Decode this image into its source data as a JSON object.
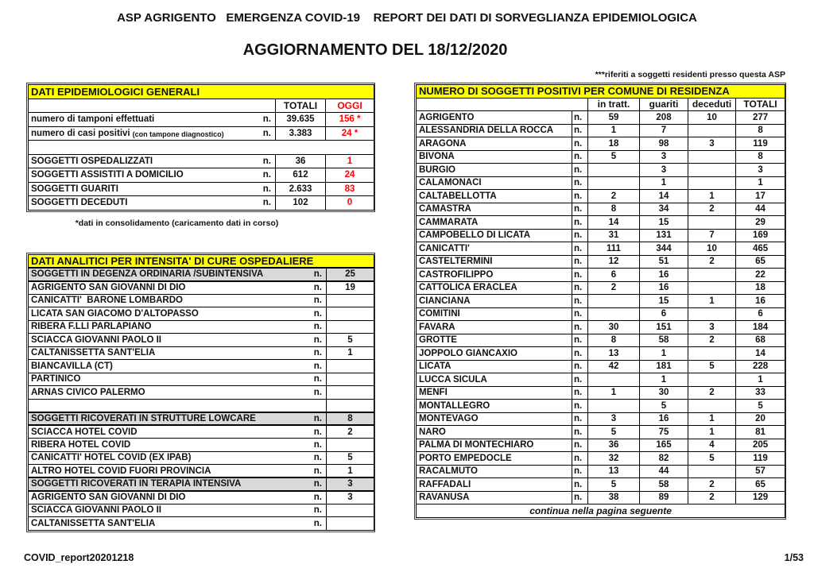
{
  "page": {
    "title": "ASP AGRIGENTO   EMERGENZA COVID-19    REPORT DEI DATI DI SORVEGLIANZA EPIDEMIOLOGICA",
    "subtitle": "AGGIORNAMENTO DEL 18/12/2020",
    "residents_note": "***riferiti a soggetti residenti presso questa ASP",
    "footer_left": "COVID_report20201218",
    "page_number": "1/53"
  },
  "colors": {
    "header_yellow": "#ffff00",
    "today_red": "#ff0000",
    "section_gray": "#d9d9d9"
  },
  "n_label": "n.",
  "general_table": {
    "title": "DATI EPIDEMIOLOGICI GENERALI",
    "columns": {
      "totali": "TOTALI",
      "oggi": "OGGI"
    },
    "rows": [
      {
        "label": "numero di tamponi effettuati",
        "small": "",
        "totali": "39.635",
        "oggi": "156 *"
      },
      {
        "label": "numero di casi positivi",
        "small": "(con tampone diagnostico)",
        "totali": "3.383",
        "oggi": "24 *"
      },
      {
        "spacer": true
      },
      {
        "label": "SOGGETTI OSPEDALIZZATI",
        "small": "",
        "totali": "36",
        "oggi": "1"
      },
      {
        "label": "SOGGETTI ASSISTITI A DOMICILIO",
        "small": "",
        "totali": "612",
        "oggi": "24"
      },
      {
        "label": "SOGGETTI GUARITI",
        "small": "",
        "totali": "2.633",
        "oggi": "83"
      },
      {
        "label": "SOGGETTI DECEDUTI",
        "small": "",
        "totali": "102",
        "oggi": "0"
      }
    ],
    "footnote": "*dati in consolidamento (caricamento dati in corso)"
  },
  "care_table": {
    "title": "DATI ANALITICI PER INTENSITA' DI CURE OSPEDALIERE",
    "rows": [
      {
        "label": "SOGGETTI IN DEGENZA ORDINARIA /SUBINTENSIVA",
        "value": "25",
        "section": true
      },
      {
        "label": "AGRIGENTO SAN GIOVANNI DI DIO",
        "value": "19"
      },
      {
        "label": "CANICATTI'  BARONE LOMBARDO",
        "value": ""
      },
      {
        "label": "LICATA SAN GIACOMO D'ALTOPASSO",
        "value": ""
      },
      {
        "label": "RIBERA F.LLI PARLAPIANO",
        "value": ""
      },
      {
        "label": "SCIACCA GIOVANNI PAOLO II",
        "value": "5"
      },
      {
        "label": "CALTANISSETTA SANT'ELIA",
        "value": "1"
      },
      {
        "label": "BIANCAVILLA (CT)",
        "value": ""
      },
      {
        "label": "PARTINICO",
        "value": ""
      },
      {
        "label": "ARNAS CIVICO PALERMO",
        "value": ""
      },
      {
        "label": "",
        "value": "",
        "empty": true
      },
      {
        "label": "SOGGETTI RICOVERATI IN STRUTTURE LOWCARE",
        "value": "8",
        "section": true
      },
      {
        "label": "SCIACCA HOTEL COVID",
        "value": "2"
      },
      {
        "label": "RIBERA HOTEL COVID",
        "value": ""
      },
      {
        "label": "CANICATTI' HOTEL COVID (EX IPAB)",
        "value": "5"
      },
      {
        "label": "ALTRO HOTEL COVID FUORI PROVINCIA",
        "value": "1"
      },
      {
        "label": "SOGGETTI RICOVERATI IN TERAPIA INTENSIVA",
        "value": "3",
        "section": true
      },
      {
        "label": "AGRIGENTO SAN GIOVANNI DI DIO",
        "value": "3"
      },
      {
        "label": "SCIACCA GIOVANNI PAOLO II",
        "value": ""
      },
      {
        "label": "CALTANISSETTA SANT'ELIA",
        "value": ""
      }
    ]
  },
  "comuni_table": {
    "title": "NUMERO DI SOGGETTI POSITIVI PER COMUNE DI RESIDENZA",
    "columns": [
      "in tratt.",
      "guariti",
      "deceduti",
      "TOTALI"
    ],
    "rows": [
      {
        "comune": "AGRIGENTO",
        "in_tratt": "59",
        "guariti": "208",
        "deceduti": "10",
        "totali": "277"
      },
      {
        "comune": "ALESSANDRIA DELLA ROCCA",
        "in_tratt": "1",
        "guariti": "7",
        "deceduti": "",
        "totali": "8"
      },
      {
        "comune": "ARAGONA",
        "in_tratt": "18",
        "guariti": "98",
        "deceduti": "3",
        "totali": "119"
      },
      {
        "comune": "BIVONA",
        "in_tratt": "5",
        "guariti": "3",
        "deceduti": "",
        "totali": "8"
      },
      {
        "comune": "BURGIO",
        "in_tratt": "",
        "guariti": "3",
        "deceduti": "",
        "totali": "3"
      },
      {
        "comune": "CALAMONACI",
        "in_tratt": "",
        "guariti": "1",
        "deceduti": "",
        "totali": "1"
      },
      {
        "comune": "CALTABELLOTTA",
        "in_tratt": "2",
        "guariti": "14",
        "deceduti": "1",
        "totali": "17"
      },
      {
        "comune": "CAMASTRA",
        "in_tratt": "8",
        "guariti": "34",
        "deceduti": "2",
        "totali": "44"
      },
      {
        "comune": "CAMMARATA",
        "in_tratt": "14",
        "guariti": "15",
        "deceduti": "",
        "totali": "29"
      },
      {
        "comune": "CAMPOBELLO DI LICATA",
        "in_tratt": "31",
        "guariti": "131",
        "deceduti": "7",
        "totali": "169"
      },
      {
        "comune": "CANICATTI'",
        "in_tratt": "111",
        "guariti": "344",
        "deceduti": "10",
        "totali": "465"
      },
      {
        "comune": "CASTELTERMINI",
        "in_tratt": "12",
        "guariti": "51",
        "deceduti": "2",
        "totali": "65"
      },
      {
        "comune": "CASTROFILIPPO",
        "in_tratt": "6",
        "guariti": "16",
        "deceduti": "",
        "totali": "22"
      },
      {
        "comune": "CATTOLICA ERACLEA",
        "in_tratt": "2",
        "guariti": "16",
        "deceduti": "",
        "totali": "18"
      },
      {
        "comune": "CIANCIANA",
        "in_tratt": "",
        "guariti": "15",
        "deceduti": "1",
        "totali": "16"
      },
      {
        "comune": "COMITINI",
        "in_tratt": "",
        "guariti": "6",
        "deceduti": "",
        "totali": "6"
      },
      {
        "comune": "FAVARA",
        "in_tratt": "30",
        "guariti": "151",
        "deceduti": "3",
        "totali": "184"
      },
      {
        "comune": "GROTTE",
        "in_tratt": "8",
        "guariti": "58",
        "deceduti": "2",
        "totali": "68"
      },
      {
        "comune": "JOPPOLO GIANCAXIO",
        "in_tratt": "13",
        "guariti": "1",
        "deceduti": "",
        "totali": "14"
      },
      {
        "comune": "LICATA",
        "in_tratt": "42",
        "guariti": "181",
        "deceduti": "5",
        "totali": "228"
      },
      {
        "comune": "LUCCA SICULA",
        "in_tratt": "",
        "guariti": "1",
        "deceduti": "",
        "totali": "1"
      },
      {
        "comune": "MENFI",
        "in_tratt": "1",
        "guariti": "30",
        "deceduti": "2",
        "totali": "33"
      },
      {
        "comune": "MONTALLEGRO",
        "in_tratt": "",
        "guariti": "5",
        "deceduti": "",
        "totali": "5"
      },
      {
        "comune": "MONTEVAGO",
        "in_tratt": "3",
        "guariti": "16",
        "deceduti": "1",
        "totali": "20"
      },
      {
        "comune": "NARO",
        "in_tratt": "5",
        "guariti": "75",
        "deceduti": "1",
        "totali": "81"
      },
      {
        "comune": "PALMA DI MONTECHIARO",
        "in_tratt": "36",
        "guariti": "165",
        "deceduti": "4",
        "totali": "205"
      },
      {
        "comune": "PORTO EMPEDOCLE",
        "in_tratt": "32",
        "guariti": "82",
        "deceduti": "5",
        "totali": "119"
      },
      {
        "comune": "RACALMUTO",
        "in_tratt": "13",
        "guariti": "44",
        "deceduti": "",
        "totali": "57"
      },
      {
        "comune": "RAFFADALI",
        "in_tratt": "5",
        "guariti": "58",
        "deceduti": "2",
        "totali": "65"
      },
      {
        "comune": "RAVANUSA",
        "in_tratt": "38",
        "guariti": "89",
        "deceduti": "2",
        "totali": "129"
      }
    ],
    "continua": "continua nella pagina seguente"
  }
}
